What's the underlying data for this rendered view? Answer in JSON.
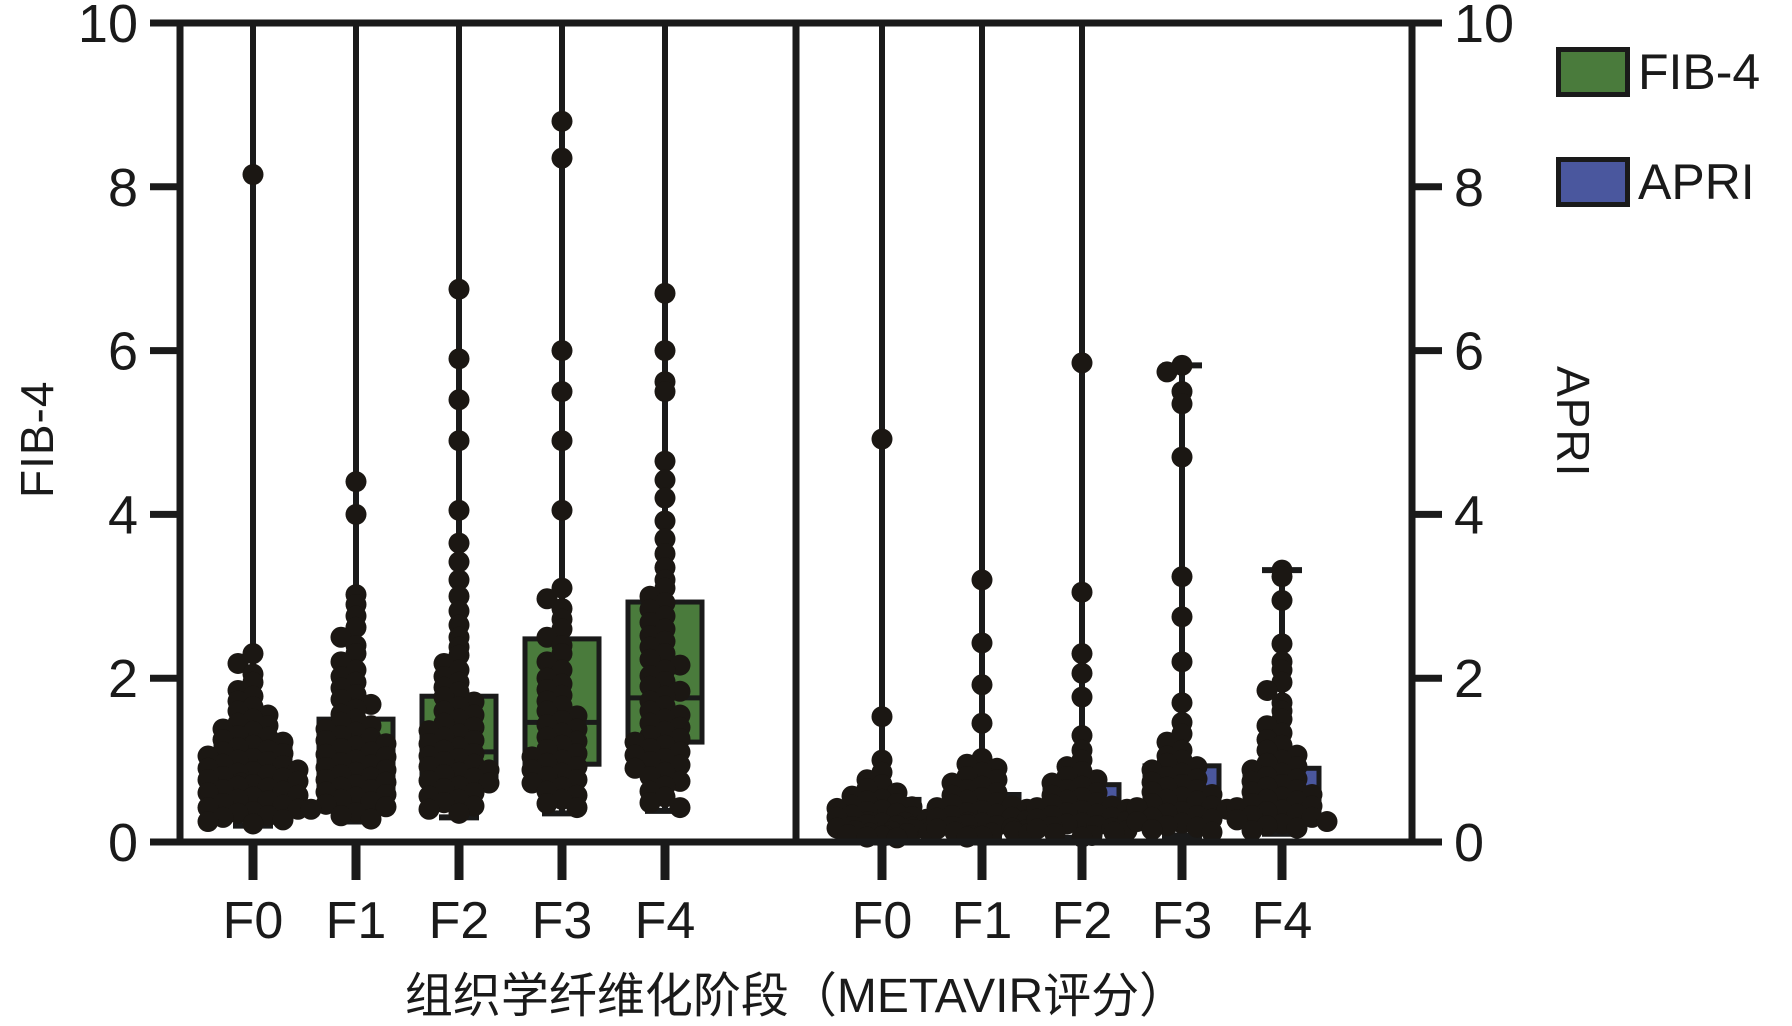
{
  "figure": {
    "x_axis_title": "组织学纤维化阶段（METAVIR评分）",
    "left_y_label": "FIB-4",
    "right_y_label": "APRI",
    "y_ticks": [
      0,
      2,
      4,
      6,
      8,
      10
    ],
    "y_min": 0,
    "y_max": 10,
    "categories": [
      "F0",
      "F1",
      "F2",
      "F3",
      "F4"
    ]
  },
  "legend": {
    "items": [
      {
        "label": "FIB-4",
        "color": "#4a7b3c"
      },
      {
        "label": "APRI",
        "color": "#4a579e"
      }
    ]
  },
  "colors": {
    "fib4_box": "#4a7b3c",
    "apri_box": "#4a579e",
    "axis": "#1a1a1a",
    "dot": "#1b1713",
    "background": "#ffffff"
  },
  "chart_data": {
    "type": "boxplot-with-points",
    "title": "",
    "xlabel": "组织学纤维化阶段（METAVIR评分）",
    "ylabel_left": "FIB-4",
    "ylabel_right": "APRI",
    "ylim": [
      0,
      10
    ],
    "grid": false,
    "legend_position": "top-right",
    "panels": [
      {
        "name": "FIB-4",
        "color": "#4a7b3c",
        "categories": [
          "F0",
          "F1",
          "F2",
          "F3",
          "F4"
        ],
        "boxes": [
          {
            "label": "F0",
            "whisker_low": 0.2,
            "q1": 0.62,
            "median": 0.88,
            "q3": 1.25,
            "whisker_high": 10,
            "top_capped": false,
            "points": [
              8.15,
              2.3,
              2.18,
              2.05,
              1.95,
              1.85,
              1.78,
              1.72,
              1.65,
              1.6,
              1.55,
              1.5,
              1.45,
              1.42,
              1.38,
              1.35,
              1.3,
              1.28,
              1.25,
              1.22,
              1.18,
              1.15,
              1.12,
              1.1,
              1.08,
              1.05,
              1.02,
              1.0,
              0.98,
              0.95,
              0.93,
              0.9,
              0.88,
              0.86,
              0.84,
              0.82,
              0.8,
              0.78,
              0.76,
              0.74,
              0.72,
              0.7,
              0.68,
              0.66,
              0.64,
              0.62,
              0.6,
              0.57,
              0.55,
              0.52,
              0.5,
              0.47,
              0.45,
              0.42,
              0.4,
              0.37,
              0.35,
              0.32,
              0.3,
              0.27,
              0.25,
              0.22
            ]
          },
          {
            "label": "F1",
            "whisker_low": 0.25,
            "q1": 0.65,
            "median": 0.95,
            "q3": 1.5,
            "whisker_high": 10,
            "top_capped": false,
            "points": [
              4.4,
              4.0,
              3.02,
              2.9,
              2.76,
              2.62,
              2.5,
              2.4,
              2.3,
              2.2,
              2.1,
              2.02,
              1.95,
              1.88,
              1.8,
              1.74,
              1.68,
              1.62,
              1.56,
              1.5,
              1.46,
              1.42,
              1.38,
              1.34,
              1.3,
              1.27,
              1.24,
              1.2,
              1.17,
              1.14,
              1.1,
              1.07,
              1.04,
              1.0,
              0.97,
              0.94,
              0.91,
              0.88,
              0.85,
              0.82,
              0.79,
              0.76,
              0.73,
              0.7,
              0.67,
              0.64,
              0.61,
              0.58,
              0.55,
              0.52,
              0.49,
              0.46,
              0.43,
              0.4,
              0.36,
              0.32,
              0.28
            ]
          },
          {
            "label": "F2",
            "whisker_low": 0.3,
            "q1": 0.75,
            "median": 1.1,
            "q3": 1.78,
            "whisker_high": 10,
            "top_capped": false,
            "points": [
              6.75,
              5.9,
              5.4,
              4.9,
              4.05,
              3.65,
              3.42,
              3.2,
              3.0,
              2.82,
              2.65,
              2.5,
              2.38,
              2.28,
              2.18,
              2.1,
              2.02,
              1.95,
              1.89,
              1.83,
              1.77,
              1.71,
              1.65,
              1.6,
              1.55,
              1.5,
              1.45,
              1.4,
              1.36,
              1.32,
              1.28,
              1.24,
              1.2,
              1.16,
              1.12,
              1.08,
              1.05,
              1.02,
              0.98,
              0.95,
              0.92,
              0.88,
              0.85,
              0.82,
              0.78,
              0.75,
              0.72,
              0.68,
              0.65,
              0.6,
              0.56,
              0.52,
              0.48,
              0.44,
              0.4,
              0.35
            ]
          },
          {
            "label": "F3",
            "whisker_low": 0.35,
            "q1": 0.95,
            "median": 1.46,
            "q3": 2.48,
            "whisker_high": 10,
            "top_capped": false,
            "points": [
              8.8,
              8.35,
              6.0,
              5.5,
              4.9,
              4.05,
              3.1,
              2.97,
              2.85,
              2.72,
              2.6,
              2.5,
              2.4,
              2.3,
              2.2,
              2.1,
              2.0,
              1.93,
              1.86,
              1.79,
              1.72,
              1.66,
              1.6,
              1.54,
              1.48,
              1.43,
              1.38,
              1.33,
              1.28,
              1.23,
              1.18,
              1.13,
              1.08,
              1.04,
              1.0,
              0.96,
              0.92,
              0.88,
              0.84,
              0.8,
              0.76,
              0.72,
              0.67,
              0.62,
              0.57,
              0.52,
              0.47,
              0.42
            ]
          },
          {
            "label": "F4",
            "whisker_low": 0.38,
            "q1": 1.22,
            "median": 1.76,
            "q3": 2.93,
            "whisker_high": 10,
            "top_capped": false,
            "points": [
              6.7,
              6.0,
              5.62,
              5.5,
              4.65,
              4.42,
              4.2,
              3.92,
              3.7,
              3.52,
              3.35,
              3.2,
              3.1,
              3.0,
              2.92,
              2.84,
              2.76,
              2.68,
              2.6,
              2.52,
              2.45,
              2.38,
              2.3,
              2.23,
              2.16,
              2.1,
              2.03,
              1.96,
              1.9,
              1.84,
              1.78,
              1.72,
              1.66,
              1.6,
              1.55,
              1.5,
              1.45,
              1.4,
              1.35,
              1.3,
              1.26,
              1.22,
              1.18,
              1.14,
              1.1,
              1.06,
              1.02,
              0.98,
              0.94,
              0.9,
              0.85,
              0.8,
              0.74,
              0.68,
              0.62,
              0.55,
              0.48,
              0.42
            ]
          }
        ]
      },
      {
        "name": "APRI",
        "color": "#4a579e",
        "categories": [
          "F0",
          "F1",
          "F2",
          "F3",
          "F4"
        ],
        "boxes": [
          {
            "label": "F0",
            "whisker_low": 0.04,
            "q1": 0.18,
            "median": 0.3,
            "q3": 0.52,
            "whisker_high": 10,
            "top_capped": false,
            "points": [
              4.92,
              1.53,
              1.0,
              0.85,
              0.76,
              0.7,
              0.65,
              0.6,
              0.56,
              0.52,
              0.5,
              0.47,
              0.45,
              0.43,
              0.41,
              0.39,
              0.37,
              0.35,
              0.33,
              0.31,
              0.3,
              0.28,
              0.27,
              0.25,
              0.24,
              0.23,
              0.21,
              0.2,
              0.19,
              0.18,
              0.17,
              0.16,
              0.15,
              0.14,
              0.13,
              0.12,
              0.11,
              0.1,
              0.09,
              0.08,
              0.07,
              0.06,
              0.05
            ]
          },
          {
            "label": "F1",
            "whisker_low": 0.05,
            "q1": 0.2,
            "median": 0.33,
            "q3": 0.58,
            "whisker_high": 10,
            "top_capped": false,
            "points": [
              3.2,
              2.43,
              1.92,
              1.45,
              1.02,
              0.95,
              0.9,
              0.85,
              0.8,
              0.76,
              0.72,
              0.68,
              0.64,
              0.6,
              0.57,
              0.54,
              0.51,
              0.48,
              0.46,
              0.44,
              0.42,
              0.4,
              0.38,
              0.36,
              0.34,
              0.32,
              0.3,
              0.29,
              0.27,
              0.26,
              0.24,
              0.23,
              0.21,
              0.2,
              0.19,
              0.17,
              0.16,
              0.15,
              0.13,
              0.12,
              0.11,
              0.1,
              0.08,
              0.07,
              0.06
            ]
          },
          {
            "label": "F2",
            "whisker_low": 0.05,
            "q1": 0.22,
            "median": 0.38,
            "q3": 0.7,
            "whisker_high": 10,
            "top_capped": false,
            "points": [
              5.85,
              3.05,
              2.3,
              2.06,
              1.77,
              1.3,
              1.12,
              1.0,
              0.92,
              0.86,
              0.8,
              0.76,
              0.72,
              0.68,
              0.64,
              0.6,
              0.57,
              0.54,
              0.51,
              0.48,
              0.46,
              0.44,
              0.42,
              0.4,
              0.38,
              0.36,
              0.34,
              0.32,
              0.3,
              0.28,
              0.26,
              0.25,
              0.23,
              0.22,
              0.2,
              0.19,
              0.17,
              0.16,
              0.14,
              0.12,
              0.1,
              0.08,
              0.06
            ]
          },
          {
            "label": "F3",
            "whisker_low": 0.08,
            "q1": 0.3,
            "median": 0.52,
            "q3": 0.93,
            "whisker_high": 5.82,
            "top_capped": true,
            "points": [
              5.82,
              5.74,
              5.5,
              5.35,
              4.7,
              3.24,
              2.75,
              2.2,
              1.7,
              1.46,
              1.32,
              1.22,
              1.12,
              1.05,
              1.0,
              0.96,
              0.92,
              0.88,
              0.84,
              0.8,
              0.77,
              0.73,
              0.7,
              0.67,
              0.64,
              0.61,
              0.58,
              0.55,
              0.52,
              0.5,
              0.47,
              0.44,
              0.42,
              0.4,
              0.37,
              0.35,
              0.32,
              0.3,
              0.28,
              0.25,
              0.23,
              0.2,
              0.18,
              0.15,
              0.12
            ]
          },
          {
            "label": "F4",
            "whisker_low": 0.1,
            "q1": 0.3,
            "median": 0.5,
            "q3": 0.9,
            "whisker_high": 3.32,
            "top_capped": true,
            "points": [
              3.32,
              3.24,
              2.95,
              2.42,
              2.2,
              2.1,
              1.95,
              1.85,
              1.7,
              1.6,
              1.5,
              1.42,
              1.33,
              1.25,
              1.18,
              1.12,
              1.06,
              1.0,
              0.96,
              0.92,
              0.88,
              0.84,
              0.8,
              0.77,
              0.74,
              0.7,
              0.67,
              0.64,
              0.61,
              0.58,
              0.55,
              0.52,
              0.5,
              0.47,
              0.44,
              0.42,
              0.39,
              0.37,
              0.34,
              0.32,
              0.3,
              0.27,
              0.25,
              0.22,
              0.2,
              0.17,
              0.14
            ]
          }
        ]
      }
    ]
  }
}
